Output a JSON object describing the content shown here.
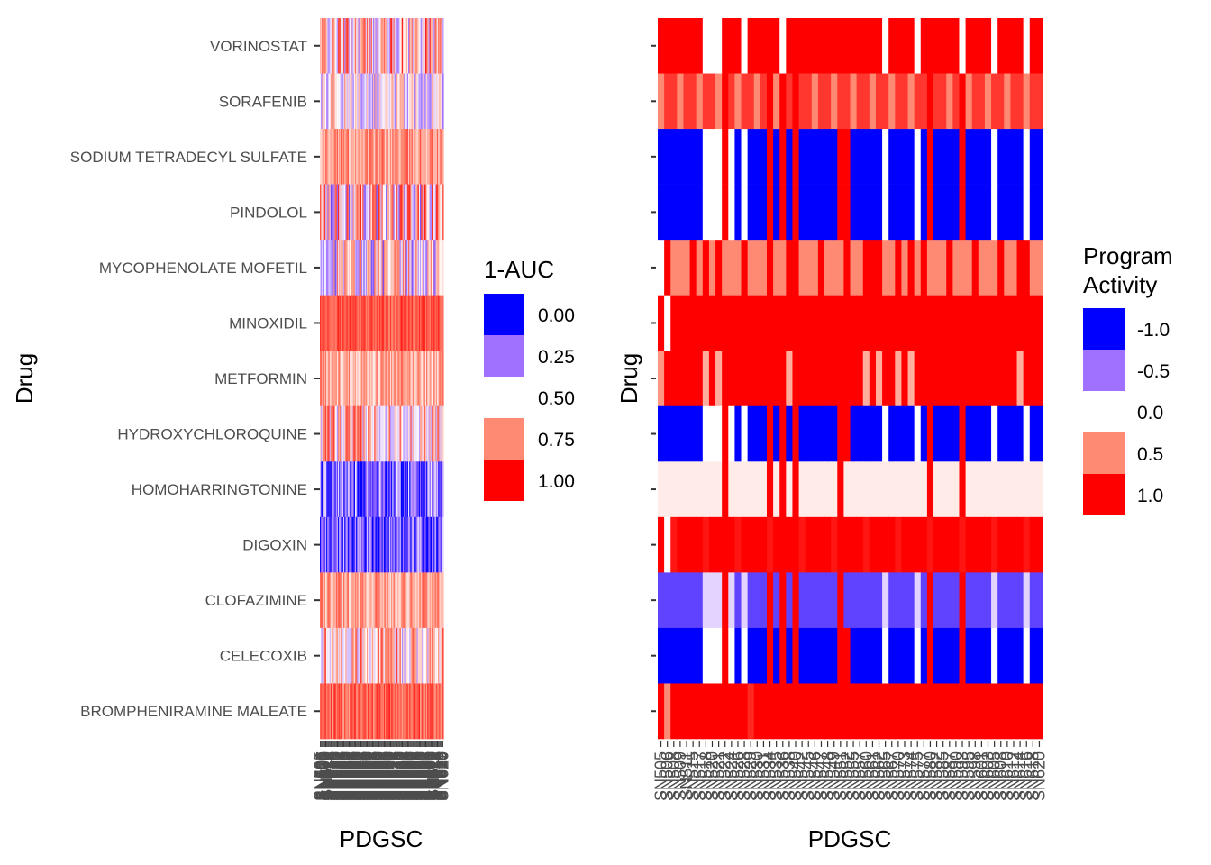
{
  "palette": {
    "blue": "#0000ff",
    "lightblue": "#a070ff",
    "white": "#ffffff",
    "salmon": "#ff8a73",
    "red": "#ff0000",
    "axis": "#333333",
    "label": "#4d4d4d",
    "title": "#000000"
  },
  "chart_data": [
    {
      "type": "heatmap",
      "title": "",
      "xlabel": "PDGSC",
      "ylabel": "Drug",
      "x": [
        "SN505",
        "SN506",
        "SN507",
        "SN508",
        "SN509",
        "SN510",
        "SN511",
        "SN512",
        "SN513",
        "SN514",
        "SN515",
        "SN516",
        "SN517",
        "SN518",
        "SN519",
        "SN520",
        "SN521",
        "SN522",
        "SN523",
        "SN524",
        "SN525",
        "SN526",
        "SN527",
        "SN528",
        "SN529",
        "SN530",
        "SN531",
        "SN532",
        "SN533",
        "SN534",
        "SN535",
        "SN536",
        "SN537",
        "SN538",
        "SN539",
        "SN540",
        "SN541",
        "SN542",
        "SN543",
        "SN544",
        "SN545",
        "SN546",
        "SN547",
        "SN548",
        "SN549",
        "SN550",
        "SN551",
        "SN552",
        "SN553",
        "SN554",
        "SN555",
        "SN556",
        "SN557",
        "SN558",
        "SN559",
        "SN560",
        "SN561",
        "SN562",
        "SN563",
        "SN564",
        "SN565",
        "SN566",
        "SN567",
        "SN568",
        "SN569",
        "SN570",
        "SN571",
        "SN572",
        "SN573",
        "SN574",
        "SN575",
        "SN576",
        "SN577",
        "SN578",
        "SN579",
        "SN580",
        "SN581",
        "SN582",
        "SN583",
        "SN584",
        "SN585",
        "SN586",
        "SN587",
        "SN588",
        "SN589",
        "SN590",
        "SN591",
        "SN592",
        "SN593",
        "SN594",
        "SN595",
        "SN596",
        "SN597",
        "SN598",
        "SN599",
        "SN600",
        "SN601",
        "SN602",
        "SN603",
        "SN604",
        "SN605",
        "SN606",
        "SN607",
        "SN608",
        "SN609",
        "SN610",
        "SN611",
        "SN612",
        "SN613",
        "SN614",
        "SN615",
        "SN616",
        "SN617",
        "SN618",
        "SN619",
        "SN620"
      ],
      "y": [
        "VORINOSTAT",
        "SORAFENIB",
        "SODIUM TETRADECYL SULFATE",
        "PINDOLOL",
        "MYCOPHENOLATE MOFETIL",
        "MINOXIDIL",
        "METFORMIN",
        "HYDROXYCHLOROQUINE",
        "HOMOHARRINGTONINE",
        "DIGOXIN",
        "CLOFAZIMINE",
        "CELECOXIB",
        "BROMPHENIRAMINE MALEATE"
      ],
      "row_means": [
        0.6,
        0.5,
        0.72,
        0.55,
        0.5,
        0.85,
        0.68,
        0.6,
        0.22,
        0.2,
        0.7,
        0.6,
        0.82
      ],
      "row_spreads": [
        0.35,
        0.25,
        0.15,
        0.4,
        0.35,
        0.1,
        0.15,
        0.3,
        0.25,
        0.25,
        0.15,
        0.3,
        0.12
      ],
      "legend": {
        "title": "1-AUC",
        "breaks": [
          "0.00",
          "0.25",
          "0.50",
          "0.75",
          "1.00"
        ]
      },
      "color_scale": {
        "min": 0,
        "mid": 0.5,
        "max": 1
      }
    },
    {
      "type": "heatmap",
      "title": "",
      "xlabel": "PDGSC",
      "ylabel": "Drug",
      "x": [
        "SN505",
        "SN506",
        "SN508",
        "SN509",
        "SN511",
        "SN515",
        "SN517",
        "SN518",
        "SN520",
        "SN521",
        "SN522",
        "SN524",
        "SN526",
        "SN528",
        "SN529",
        "SN530",
        "SN531",
        "SN534",
        "SN535",
        "SN536",
        "SN538",
        "SN540",
        "SN542",
        "SN545",
        "SN546",
        "SN547",
        "SN548",
        "SN549",
        "SN551",
        "SN552",
        "SN555",
        "SN557",
        "SN560",
        "SN561",
        "SN562",
        "SN565",
        "SN567",
        "SN570",
        "SN573",
        "SN574",
        "SN575",
        "SN577",
        "SN580",
        "SN582",
        "SN585",
        "SN587",
        "SN590",
        "SN593",
        "SN595",
        "SN598",
        "SN601",
        "SN603",
        "SN605",
        "SN608",
        "SN610",
        "SN612",
        "SN614",
        "SN616",
        "SN618",
        "SN620"
      ],
      "y": [
        "VORINOSTAT",
        "SORAFENIB",
        "SODIUM TETRADECYL SULFATE",
        "PINDOLOL",
        "MYCOPHENOLATE MOFETIL",
        "MINOXIDIL",
        "METFORMIN",
        "HYDROXYCHLOROQUINE",
        "HOMOHARRINGTONINE",
        "DIGOXIN",
        "CLOFAZIMINE",
        "CELECOXIB",
        "BROMPHENIRAMINE MALEATE"
      ],
      "pattern_A": [
        1,
        1,
        1,
        1,
        1,
        1,
        1,
        0,
        0,
        0,
        1,
        0,
        1,
        0,
        1,
        1,
        1,
        1,
        1,
        0,
        1,
        1,
        1,
        1,
        1,
        1,
        1,
        1,
        1,
        1,
        1,
        1,
        1,
        1,
        1,
        0,
        1,
        1,
        1,
        1,
        0,
        1,
        1,
        1,
        1,
        1,
        1,
        0,
        1,
        1,
        1,
        1,
        0,
        1,
        1,
        1,
        1,
        0,
        1,
        1
      ],
      "pattern_B": [
        0,
        0,
        0,
        0,
        0,
        0,
        0,
        1,
        0,
        1,
        2,
        0,
        0,
        0,
        0,
        0,
        0,
        2,
        0,
        2,
        1,
        2,
        0,
        0,
        0,
        0,
        0,
        0,
        0,
        0,
        0,
        0,
        1,
        0,
        1,
        0,
        0,
        1,
        0,
        1,
        0,
        0,
        2,
        0,
        0,
        0,
        0,
        2,
        0,
        0,
        0,
        0,
        0,
        0,
        0,
        0,
        1,
        0,
        0,
        0
      ],
      "legend": {
        "title_lines": [
          "Program",
          "Activity"
        ],
        "breaks": [
          "-1.0",
          "-0.5",
          "0.0",
          "0.5",
          "1.0"
        ]
      },
      "color_scale": {
        "min": -1,
        "mid": 0,
        "max": 1
      }
    }
  ]
}
